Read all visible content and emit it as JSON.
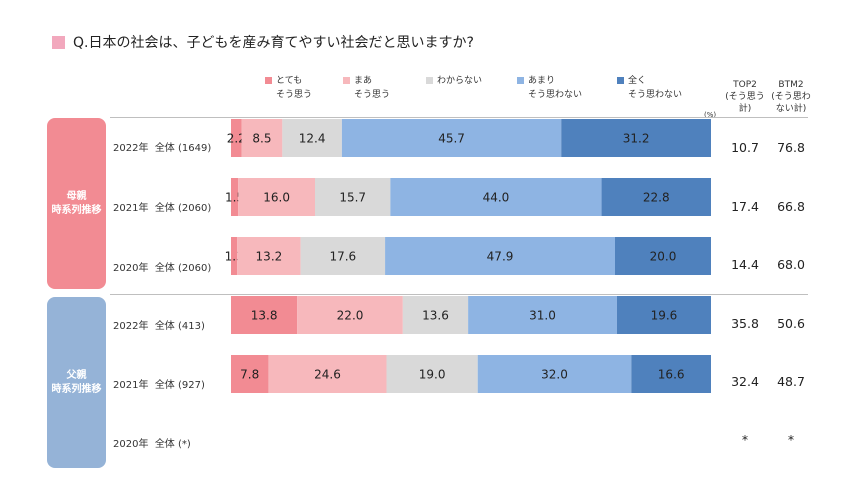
{
  "title": "Q.日本の社会は、子どもを産み育てやすい社会だと思いますか?",
  "legend": [
    {
      "label_line1": "とても",
      "label_line2": "そう思う",
      "color": "#f28b93"
    },
    {
      "label_line1": "まあ",
      "label_line2": "そう思う",
      "color": "#f7b8bc"
    },
    {
      "label_line1": "わからない",
      "label_line2": "",
      "color": "#d9d9d9"
    },
    {
      "label_line1": "あまり",
      "label_line2": "そう思わない",
      "color": "#8eb4e3"
    },
    {
      "label_line1": "全く",
      "label_line2": "そう思わない",
      "color": "#4f81bd"
    }
  ],
  "percent_mark": "(%)",
  "summary_headers": {
    "top2": "TOP2\n(そう思う\n計)",
    "btm2": "BTM2\n(そう思わ\nない計)"
  },
  "groups": [
    {
      "label": "母親\n時系列推移",
      "color": "#f28b93"
    },
    {
      "label": "父親\n時系列推移",
      "color": "#95b3d7"
    }
  ],
  "chart_data": {
    "type": "bar",
    "stacked": true,
    "orientation": "horizontal",
    "title": "Q.日本の社会は、子どもを産み育てやすい社会だと思いますか?",
    "unit": "(%)",
    "series_names": [
      "とても そう思う",
      "まあ そう思う",
      "わからない",
      "あまり そう思わない",
      "全く そう思わない"
    ],
    "series_colors": [
      "#f28b93",
      "#f7b8bc",
      "#d9d9d9",
      "#8eb4e3",
      "#4f81bd"
    ],
    "rows": [
      {
        "group": "母親",
        "year": "2022年",
        "label": "全体 (1649)",
        "values": [
          2.2,
          8.5,
          12.4,
          45.7,
          31.2
        ],
        "top2": "10.7",
        "btm2": "76.8"
      },
      {
        "group": "母親",
        "year": "2021年",
        "label": "全体 (2060)",
        "values": [
          1.5,
          16.0,
          15.7,
          44.0,
          22.8
        ],
        "top2": "17.4",
        "btm2": "66.8"
      },
      {
        "group": "母親",
        "year": "2020年",
        "label": "全体 (2060)",
        "values": [
          1.3,
          13.2,
          17.6,
          47.9,
          20.0
        ],
        "top2": "14.4",
        "btm2": "68.0"
      },
      {
        "group": "父親",
        "year": "2022年",
        "label": "全体 (413)",
        "values": [
          13.8,
          22.0,
          13.6,
          31.0,
          19.6
        ],
        "top2": "35.8",
        "btm2": "50.6"
      },
      {
        "group": "父親",
        "year": "2021年",
        "label": "全体 (927)",
        "values": [
          7.8,
          24.6,
          19.0,
          32.0,
          16.6
        ],
        "top2": "32.4",
        "btm2": "48.7"
      },
      {
        "group": "父親",
        "year": "2020年",
        "label": "全体 (*)",
        "values": [],
        "top2": "*",
        "btm2": "*"
      }
    ],
    "xlim": [
      0,
      100
    ]
  }
}
